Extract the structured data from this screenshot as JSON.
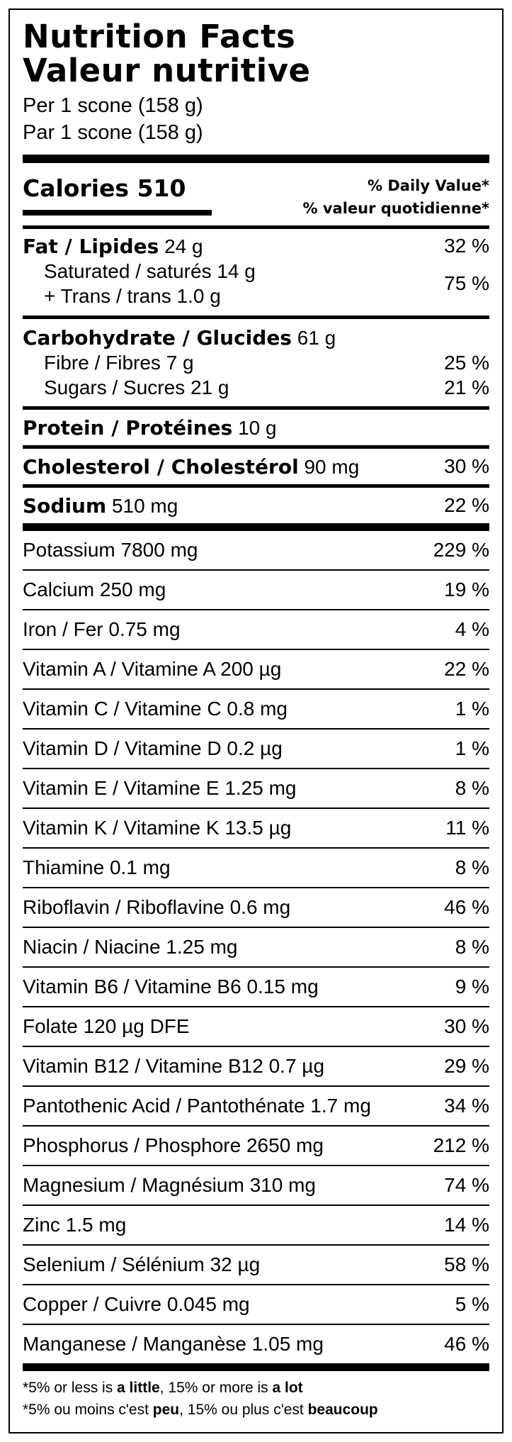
{
  "title": {
    "en": "Nutrition Facts",
    "fr": "Valeur nutritive"
  },
  "serving": {
    "en": "Per 1 scone (158 g)",
    "fr": "Par 1 scone (158 g)"
  },
  "calories": {
    "label": "Calories",
    "value": "510"
  },
  "daily_value_header": {
    "en": "% Daily Value*",
    "fr": "% valeur quotidienne*"
  },
  "fat": {
    "label": "Fat / Lipides",
    "amount": "24 g",
    "pct": "32 %"
  },
  "saturated": {
    "label": "Saturated / saturés 14 g",
    "trans": "+ Trans / trans 1.0 g",
    "pct": "75 %"
  },
  "carbohydrate": {
    "label": "Carbohydrate / Glucides",
    "amount": "61 g"
  },
  "fibre": {
    "label": "Fibre / Fibres 7 g",
    "pct": "25 %"
  },
  "sugars": {
    "label": "Sugars / Sucres 21 g",
    "pct": "21 %"
  },
  "protein": {
    "label": "Protein / Protéines",
    "amount": "10 g"
  },
  "cholesterol": {
    "label": "Cholesterol / Cholestérol",
    "amount": "90 mg",
    "pct": "30 %"
  },
  "sodium": {
    "label": "Sodium",
    "amount": "510 mg",
    "pct": "22 %"
  },
  "vitamins": [
    {
      "label": "Potassium 7800 mg",
      "pct": "229 %"
    },
    {
      "label": "Calcium 250 mg",
      "pct": "19 %"
    },
    {
      "label": "Iron / Fer 0.75 mg",
      "pct": "4 %"
    },
    {
      "label": "Vitamin A / Vitamine A 200 µg",
      "pct": "22 %"
    },
    {
      "label": "Vitamin C / Vitamine C 0.8 mg",
      "pct": "1 %"
    },
    {
      "label": "Vitamin D / Vitamine D 0.2 µg",
      "pct": "1 %"
    },
    {
      "label": "Vitamin E / Vitamine E 1.25 mg",
      "pct": "8 %"
    },
    {
      "label": "Vitamin K / Vitamine K 13.5 µg",
      "pct": "11 %"
    },
    {
      "label": "Thiamine 0.1 mg",
      "pct": "8 %"
    },
    {
      "label": "Riboflavin / Riboflavine 0.6 mg",
      "pct": "46 %"
    },
    {
      "label": "Niacin / Niacine 1.25 mg",
      "pct": "8 %"
    },
    {
      "label": "Vitamin B6 / Vitamine B6 0.15 mg",
      "pct": "9 %"
    },
    {
      "label": "Folate 120 µg DFE",
      "pct": "30 %"
    },
    {
      "label": "Vitamin B12 / Vitamine B12 0.7 µg",
      "pct": "29 %"
    },
    {
      "label": "Pantothenic Acid / Pantothénate 1.7 mg",
      "pct": "34 %"
    },
    {
      "label": "Phosphorus / Phosphore 2650 mg",
      "pct": "212 %"
    },
    {
      "label": "Magnesium / Magnésium 310 mg",
      "pct": "74 %"
    },
    {
      "label": "Zinc 1.5 mg",
      "pct": "14 %"
    },
    {
      "label": "Selenium / Sélénium 32 µg",
      "pct": "58 %"
    },
    {
      "label": "Copper / Cuivre 0.045 mg",
      "pct": "5 %"
    },
    {
      "label": "Manganese / Manganèse 1.05 mg",
      "pct": "46 %"
    }
  ],
  "footnote": {
    "en_prefix": "*5% or less is ",
    "en_little": "a little",
    "en_mid": ", 15% or more is ",
    "en_lot": "a lot",
    "fr_prefix": "*5% ou moins c'est ",
    "fr_little": "peu",
    "fr_mid": ", 15% ou plus c'est ",
    "fr_lot": "beaucoup"
  }
}
